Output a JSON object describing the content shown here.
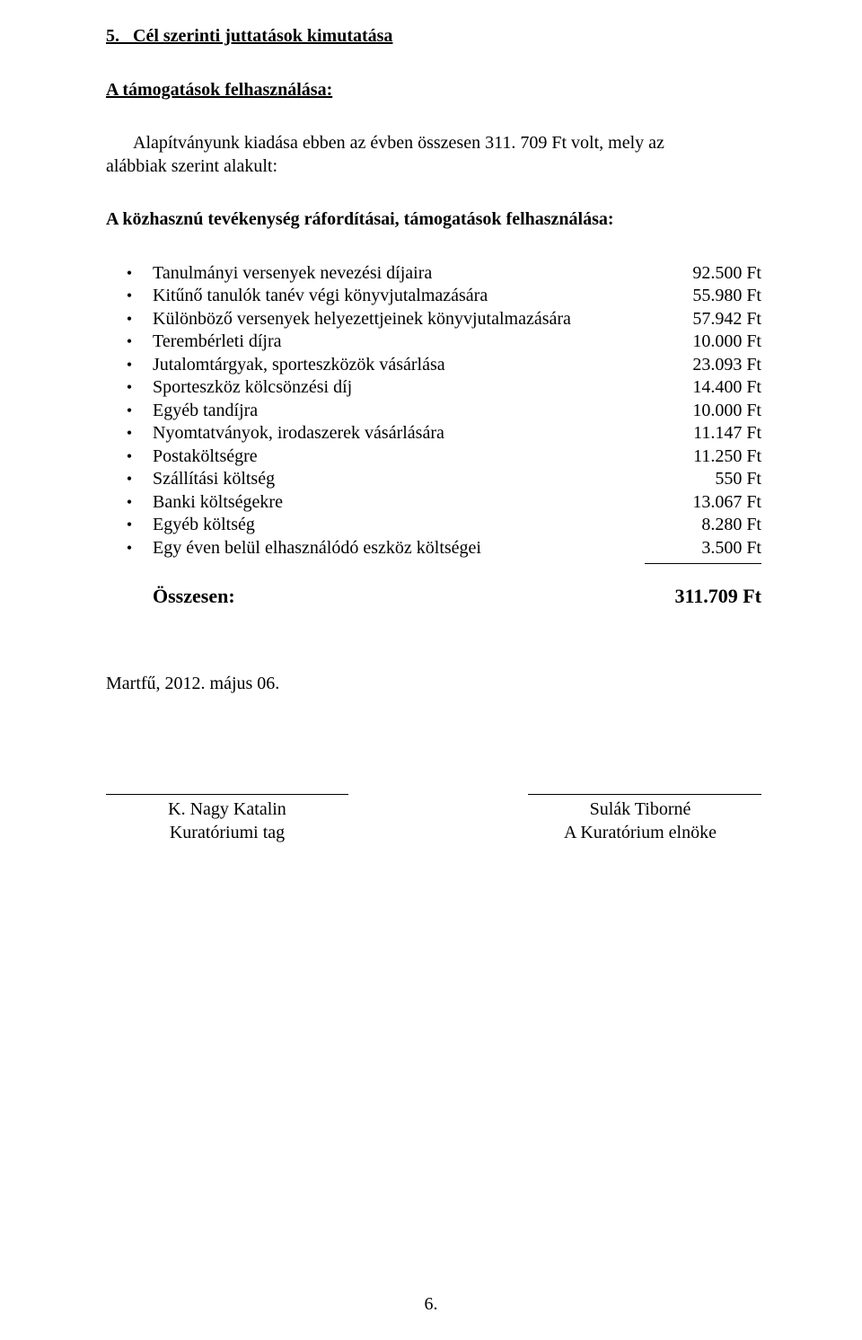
{
  "section_number": "5.",
  "section_title": "Cél szerinti juttatások kimutatása",
  "subsection_title": "A támogatások felhasználása:",
  "intro_line1": "Alapítványunk kiadása ebben az évben összesen 311. 709 Ft volt, mely az",
  "intro_line2": "alábbiak szerint alakult:",
  "expenses_heading": "A közhasznú tevékenység ráfordításai, támogatások felhasználása:",
  "items": [
    {
      "label": "Tanulmányi versenyek nevezési díjaira",
      "amount": "92.500 Ft"
    },
    {
      "label": "Kitűnő tanulók tanév végi könyvjutalmazására",
      "amount": "55.980 Ft"
    },
    {
      "label": "Különböző versenyek helyezettjeinek könyvjutalmazására",
      "amount": "57.942 Ft"
    },
    {
      "label": "Terembérleti díjra",
      "amount": "10.000 Ft"
    },
    {
      "label": "Jutalomtárgyak, sporteszközök vásárlása",
      "amount": "23.093 Ft"
    },
    {
      "label": "Sporteszköz kölcsönzési díj",
      "amount": "14.400 Ft"
    },
    {
      "label": "Egyéb tandíjra",
      "amount": "10.000 Ft"
    },
    {
      "label": "Nyomtatványok, irodaszerek vásárlására",
      "amount": "11.147 Ft"
    },
    {
      "label": "Postaköltségre",
      "amount": "11.250 Ft"
    },
    {
      "label": "Szállítási költség",
      "amount": "550 Ft"
    },
    {
      "label": "Banki költségekre",
      "amount": "13.067 Ft"
    },
    {
      "label": "Egyéb költség",
      "amount": "8.280 Ft"
    },
    {
      "label": "Egy éven belül elhasználódó eszköz költségei",
      "amount": "3.500 Ft"
    }
  ],
  "total_label": "Összesen:",
  "total_amount": "311.709 Ft",
  "date_line": "Martfű, 2012. május 06.",
  "sig_left_name": "K. Nagy Katalin",
  "sig_left_role": "Kuratóriumi tag",
  "sig_right_name": "Sulák Tiborné",
  "sig_right_role": "A Kuratórium elnöke",
  "page_number": "6.",
  "bullet_char": "•"
}
